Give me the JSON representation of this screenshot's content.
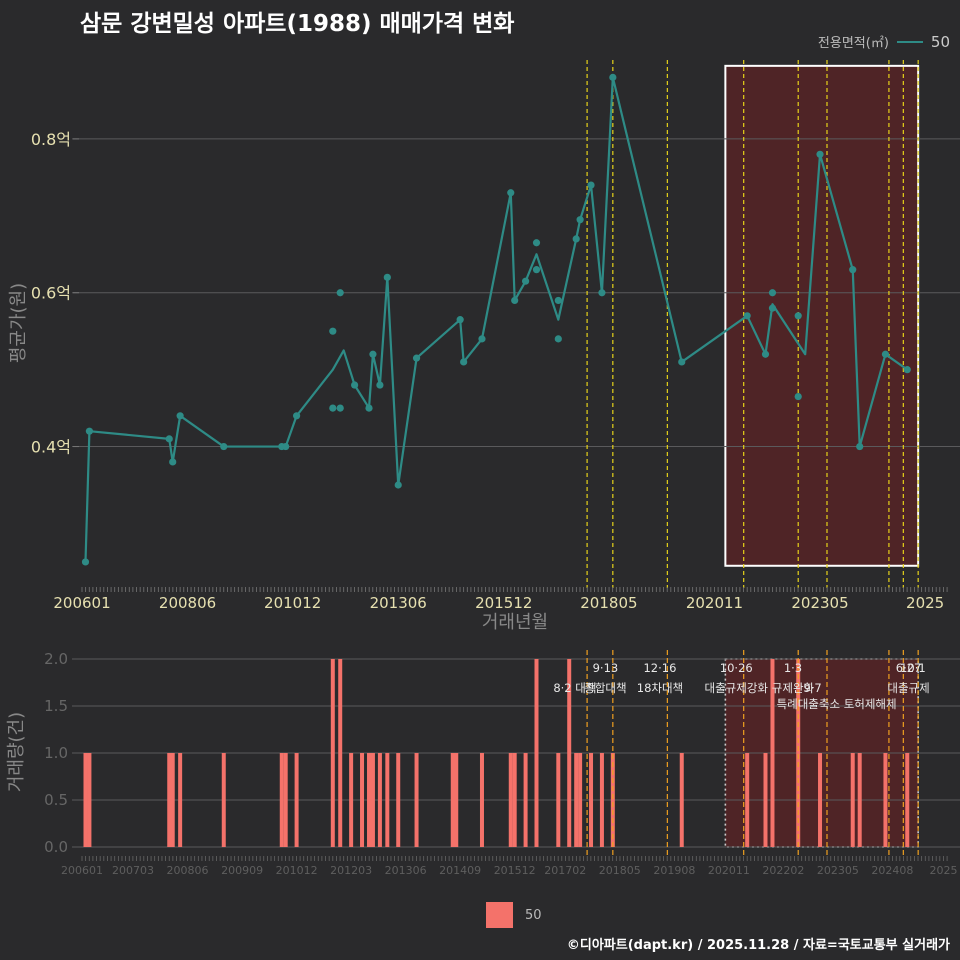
{
  "title": "삼문 강변밀성 아파트(1988) 매매가격 변화",
  "legend_top": {
    "title": "전용면적(㎡)",
    "value": "50"
  },
  "legend_bottom": {
    "value": "50"
  },
  "footer": "©디아파트(dapt.kr) / 2025.11.28 / 자료=국토교통부 실거래가",
  "colors": {
    "line": "#2e8b86",
    "bar": "#f4726a",
    "vline_top": "#e6d21a",
    "vline_bottom": "#f0a020",
    "highlight": "#6e1f22"
  },
  "chart_data": [
    {
      "type": "line",
      "title": "삼문 강변밀성 아파트(1988) 매매가격 변화",
      "xlabel": "거래년월",
      "ylabel": "평균가(원)",
      "ylim": [
        0.22,
        0.9
      ],
      "xlim": [
        2006.0,
        2025.9
      ],
      "x_ticks": [
        {
          "x": 2006.0,
          "label": "200601"
        },
        {
          "x": 2008.42,
          "label": "200806"
        },
        {
          "x": 2010.83,
          "label": "201012"
        },
        {
          "x": 2013.25,
          "label": "201306"
        },
        {
          "x": 2015.67,
          "label": "201512"
        },
        {
          "x": 2018.08,
          "label": "201805"
        },
        {
          "x": 2020.5,
          "label": "202011"
        },
        {
          "x": 2022.92,
          "label": "202305"
        },
        {
          "x": 2025.33,
          "label": "2025"
        }
      ],
      "y_ticks": [
        {
          "y": 0.4,
          "label": "0.4억"
        },
        {
          "y": 0.6,
          "label": "0.6억"
        },
        {
          "y": 0.8,
          "label": "0.8억"
        }
      ],
      "series": [
        {
          "name": "50",
          "line": [
            [
              2006.08,
              0.25
            ],
            [
              2006.17,
              0.42
            ],
            [
              2008.0,
              0.41
            ],
            [
              2008.08,
              0.38
            ],
            [
              2008.25,
              0.44
            ],
            [
              2009.25,
              0.4
            ],
            [
              2010.58,
              0.4
            ],
            [
              2010.67,
              0.4
            ],
            [
              2010.92,
              0.44
            ],
            [
              2011.75,
              0.5
            ],
            [
              2012.0,
              0.525
            ],
            [
              2012.25,
              0.48
            ],
            [
              2012.58,
              0.45
            ],
            [
              2012.67,
              0.52
            ],
            [
              2012.83,
              0.48
            ],
            [
              2013.0,
              0.62
            ],
            [
              2013.25,
              0.35
            ],
            [
              2013.67,
              0.515
            ],
            [
              2014.67,
              0.565
            ],
            [
              2014.75,
              0.51
            ],
            [
              2015.17,
              0.54
            ],
            [
              2015.83,
              0.73
            ],
            [
              2015.92,
              0.59
            ],
            [
              2016.17,
              0.615
            ],
            [
              2016.42,
              0.65
            ],
            [
              2016.92,
              0.565
            ],
            [
              2017.33,
              0.67
            ],
            [
              2017.42,
              0.695
            ],
            [
              2017.67,
              0.74
            ],
            [
              2017.92,
              0.6
            ],
            [
              2018.17,
              0.88
            ],
            [
              2019.75,
              0.51
            ],
            [
              2021.25,
              0.57
            ],
            [
              2021.67,
              0.52
            ],
            [
              2021.83,
              0.585
            ],
            [
              2022.58,
              0.52
            ],
            [
              2022.92,
              0.78
            ],
            [
              2023.67,
              0.63
            ],
            [
              2023.83,
              0.4
            ],
            [
              2024.42,
              0.52
            ],
            [
              2024.92,
              0.5
            ]
          ],
          "points": [
            [
              2006.08,
              0.25
            ],
            [
              2006.17,
              0.42
            ],
            [
              2008.0,
              0.41
            ],
            [
              2008.08,
              0.38
            ],
            [
              2008.25,
              0.44
            ],
            [
              2009.25,
              0.4
            ],
            [
              2010.58,
              0.4
            ],
            [
              2010.67,
              0.4
            ],
            [
              2010.92,
              0.44
            ],
            [
              2011.75,
              0.55
            ],
            [
              2011.75,
              0.45
            ],
            [
              2011.92,
              0.45
            ],
            [
              2011.92,
              0.6
            ],
            [
              2012.25,
              0.48
            ],
            [
              2012.58,
              0.45
            ],
            [
              2012.67,
              0.52
            ],
            [
              2012.83,
              0.48
            ],
            [
              2013.0,
              0.62
            ],
            [
              2013.25,
              0.35
            ],
            [
              2013.67,
              0.515
            ],
            [
              2014.67,
              0.565
            ],
            [
              2014.75,
              0.51
            ],
            [
              2015.17,
              0.54
            ],
            [
              2015.83,
              0.73
            ],
            [
              2015.92,
              0.59
            ],
            [
              2016.17,
              0.615
            ],
            [
              2016.42,
              0.665
            ],
            [
              2016.42,
              0.63
            ],
            [
              2016.92,
              0.59
            ],
            [
              2016.92,
              0.54
            ],
            [
              2017.33,
              0.67
            ],
            [
              2017.42,
              0.695
            ],
            [
              2017.67,
              0.74
            ],
            [
              2017.92,
              0.6
            ],
            [
              2018.17,
              0.88
            ],
            [
              2019.75,
              0.51
            ],
            [
              2021.25,
              0.57
            ],
            [
              2021.67,
              0.52
            ],
            [
              2021.83,
              0.6
            ],
            [
              2021.83,
              0.58
            ],
            [
              2022.42,
              0.57
            ],
            [
              2022.42,
              0.465
            ],
            [
              2022.92,
              0.78
            ],
            [
              2023.67,
              0.63
            ],
            [
              2023.83,
              0.4
            ],
            [
              2024.42,
              0.52
            ],
            [
              2024.92,
              0.5
            ]
          ]
        }
      ],
      "vlines": [
        2017.58,
        2018.17,
        2019.42,
        2021.17,
        2022.42,
        2023.08,
        2024.5,
        2024.83,
        2025.17
      ],
      "highlight": {
        "x": [
          2020.75,
          2025.17
        ],
        "y": [
          0.245,
          0.895
        ]
      }
    },
    {
      "type": "bar",
      "xlabel": "",
      "ylabel": "거래량(건)",
      "ylim": [
        0,
        2
      ],
      "y_ticks": [
        {
          "y": 0.0,
          "label": "0.0"
        },
        {
          "y": 0.5,
          "label": "0.5"
        },
        {
          "y": 1.0,
          "label": "1.0"
        },
        {
          "y": 1.5,
          "label": "1.5"
        },
        {
          "y": 2.0,
          "label": "2.0"
        }
      ],
      "x_ticks": [
        {
          "x": 2006.0,
          "label": "200601"
        },
        {
          "x": 2007.17,
          "label": "200703"
        },
        {
          "x": 2008.42,
          "label": "200806"
        },
        {
          "x": 2009.67,
          "label": "200909"
        },
        {
          "x": 2010.92,
          "label": "201012"
        },
        {
          "x": 2012.17,
          "label": "201203"
        },
        {
          "x": 2013.42,
          "label": "201306"
        },
        {
          "x": 2014.67,
          "label": "201409"
        },
        {
          "x": 2015.92,
          "label": "201512"
        },
        {
          "x": 2017.08,
          "label": "201702"
        },
        {
          "x": 2018.33,
          "label": "201805"
        },
        {
          "x": 2019.58,
          "label": "201908"
        },
        {
          "x": 2020.83,
          "label": "202011"
        },
        {
          "x": 2022.08,
          "label": "202202"
        },
        {
          "x": 2023.33,
          "label": "202305"
        },
        {
          "x": 2024.58,
          "label": "202408"
        },
        {
          "x": 2025.75,
          "label": "2025"
        }
      ],
      "bars": [
        [
          2006.08,
          1
        ],
        [
          2006.17,
          1
        ],
        [
          2008.0,
          1
        ],
        [
          2008.08,
          1
        ],
        [
          2008.25,
          1
        ],
        [
          2009.25,
          1
        ],
        [
          2010.58,
          1
        ],
        [
          2010.67,
          1
        ],
        [
          2010.92,
          1
        ],
        [
          2011.75,
          2
        ],
        [
          2011.92,
          2
        ],
        [
          2012.17,
          1
        ],
        [
          2012.42,
          1
        ],
        [
          2012.58,
          1
        ],
        [
          2012.67,
          1
        ],
        [
          2012.83,
          1
        ],
        [
          2013.0,
          1
        ],
        [
          2013.25,
          1
        ],
        [
          2013.67,
          1
        ],
        [
          2014.5,
          1
        ],
        [
          2014.58,
          1
        ],
        [
          2015.17,
          1
        ],
        [
          2015.83,
          1
        ],
        [
          2015.92,
          1
        ],
        [
          2016.17,
          1
        ],
        [
          2016.42,
          2
        ],
        [
          2016.92,
          1
        ],
        [
          2017.17,
          2
        ],
        [
          2017.33,
          1
        ],
        [
          2017.42,
          1
        ],
        [
          2017.67,
          1
        ],
        [
          2017.92,
          1
        ],
        [
          2018.17,
          1
        ],
        [
          2019.75,
          1
        ],
        [
          2021.25,
          1
        ],
        [
          2021.67,
          1
        ],
        [
          2021.83,
          2
        ],
        [
          2022.42,
          2
        ],
        [
          2022.92,
          1
        ],
        [
          2023.67,
          1
        ],
        [
          2023.83,
          1
        ],
        [
          2024.42,
          1
        ],
        [
          2024.92,
          1
        ]
      ],
      "vlines": [
        2017.58,
        2018.17,
        2019.42,
        2021.17,
        2022.42,
        2023.08,
        2024.5,
        2024.83,
        2025.17
      ],
      "highlight": {
        "x": [
          2020.75,
          2025.17
        ],
        "y": [
          0,
          2.0
        ]
      },
      "annotations": [
        {
          "x": 2017.3,
          "row": 1,
          "text": "8·2 대책"
        },
        {
          "x": 2018.0,
          "row": 0,
          "text": "9·13"
        },
        {
          "x": 2018.0,
          "row": 1,
          "text": "종합대책"
        },
        {
          "x": 2019.25,
          "row": 0,
          "text": "12·16"
        },
        {
          "x": 2019.25,
          "row": 1,
          "text": "18차대책"
        },
        {
          "x": 2021.0,
          "row": 0,
          "text": "10·26"
        },
        {
          "x": 2021.0,
          "row": 1,
          "text": "대출규제강화"
        },
        {
          "x": 2022.3,
          "row": 0,
          "text": "1·3"
        },
        {
          "x": 2022.3,
          "row": 1,
          "text": "규제완화"
        },
        {
          "x": 2022.75,
          "row": 1,
          "text": "9·7"
        },
        {
          "x": 2023.3,
          "row": 2,
          "text": "특례대출축소 토허제해제"
        },
        {
          "x": 2024.95,
          "row": 0,
          "text": "6·27"
        },
        {
          "x": 2025.05,
          "row": 0,
          "text": "10·1"
        },
        {
          "x": 2024.95,
          "row": 1,
          "text": "대출규제"
        }
      ]
    }
  ]
}
